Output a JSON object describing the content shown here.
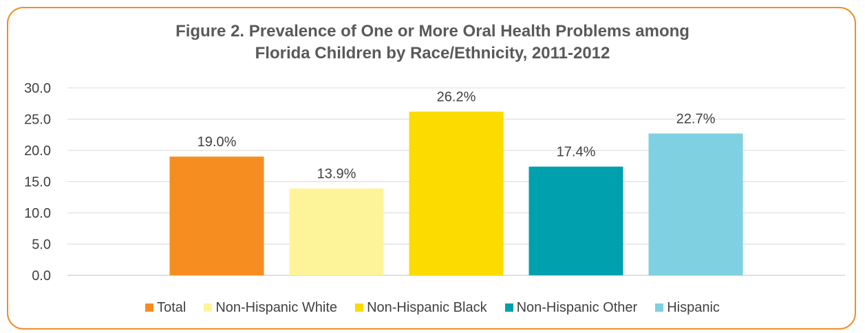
{
  "chart_data": {
    "type": "bar",
    "title_line1": "Figure 2. Prevalence of One or More Oral Health Problems among",
    "title_line2": "Florida Children by Race/Ethnicity, 2011-2012",
    "xlabel": "",
    "ylabel": "",
    "ylim": [
      0,
      30
    ],
    "yticks": [
      "0.0",
      "5.0",
      "10.0",
      "15.0",
      "20.0",
      "25.0",
      "30.0"
    ],
    "grid": true,
    "legend_position": "bottom",
    "categories": [
      "Total",
      "Non-Hispanic White",
      "Non-Hispanic Black",
      "Non-Hispanic Other",
      "Hispanic"
    ],
    "values": [
      19.0,
      13.9,
      26.2,
      17.4,
      22.7
    ],
    "data_labels": [
      "19.0%",
      "13.9%",
      "26.2%",
      "17.4%",
      "22.7%"
    ],
    "colors": [
      "#F68D21",
      "#FDF49A",
      "#FCDB00",
      "#00A0AF",
      "#7FD0E0"
    ],
    "frame_color": "#F28C28"
  }
}
